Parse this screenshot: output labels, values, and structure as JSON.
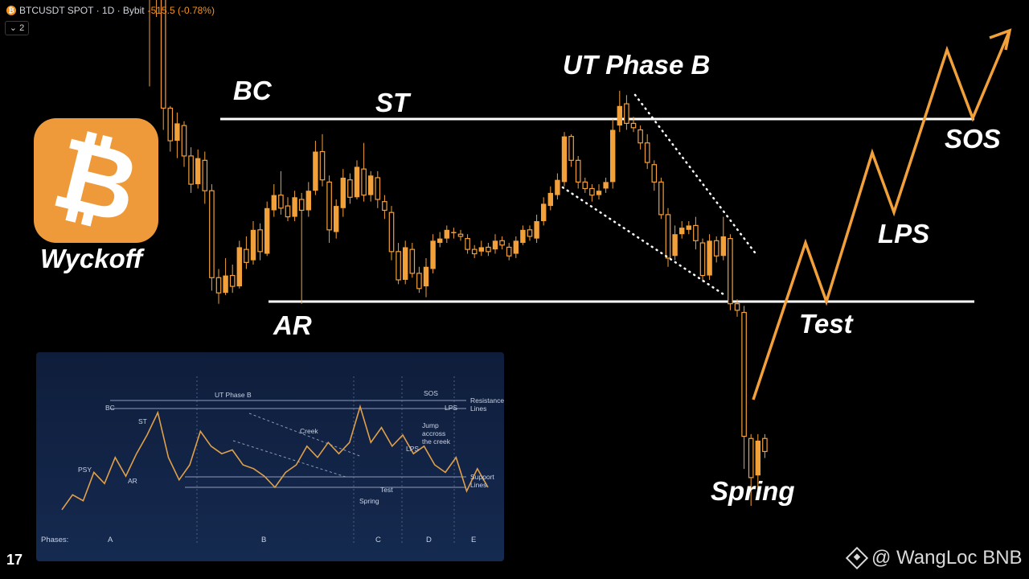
{
  "header": {
    "ticker": "BTCUSDT SPOT · 1D · Bybit",
    "change": "-515.5 (-0.78%)",
    "collapse_label": "⌄ 2"
  },
  "logo": {
    "symbol": "₿",
    "caption": "Wyckoff",
    "color": "#ee9a3a"
  },
  "tradingview_logo": "17",
  "watermark": "@ WangLoc BNB",
  "colors": {
    "candle": "#f2a13a",
    "path": "#f2a13a",
    "level": "#ffffff",
    "background": "#000000"
  },
  "chart_data": [
    {
      "type": "candlestick",
      "title": "",
      "annotations": [
        "BC",
        "ST",
        "UT Phase B",
        "AR",
        "Spring",
        "Test",
        "LPS",
        "SOS"
      ],
      "resistance_level": 11.5,
      "support_level": 3.1,
      "ylim": [
        -6,
        16
      ],
      "candles": [
        [
          21.0,
          19.5,
          21.8,
          13.0
        ],
        [
          19.4,
          17.0,
          21.7,
          16.2
        ],
        [
          17.0,
          12.0,
          17.0,
          11.0
        ],
        [
          12.0,
          10.5,
          12.1,
          10.0
        ],
        [
          10.5,
          11.3,
          11.8,
          9.7
        ],
        [
          11.2,
          9.8,
          11.4,
          9.3
        ],
        [
          9.8,
          8.5,
          10.2,
          8.1
        ],
        [
          8.5,
          9.7,
          10.1,
          8.3
        ],
        [
          9.6,
          8.2,
          10.0,
          7.6
        ],
        [
          8.2,
          4.2,
          8.5,
          3.6
        ],
        [
          4.2,
          3.5,
          4.6,
          3.0
        ],
        [
          3.5,
          4.3,
          5.1,
          3.4
        ],
        [
          4.3,
          3.8,
          4.8,
          3.5
        ],
        [
          3.8,
          5.6,
          5.9,
          3.7
        ],
        [
          5.5,
          4.9,
          6.1,
          4.6
        ],
        [
          5.0,
          6.4,
          6.8,
          4.8
        ],
        [
          6.4,
          5.4,
          6.7,
          5.0
        ],
        [
          5.3,
          7.4,
          7.7,
          5.2
        ],
        [
          7.3,
          8.0,
          8.5,
          7.0
        ],
        [
          8.0,
          7.4,
          9.1,
          7.1
        ],
        [
          7.5,
          7.0,
          7.9,
          6.8
        ],
        [
          7.0,
          7.9,
          8.2,
          6.8
        ],
        [
          7.8,
          7.3,
          8.1,
          3.0
        ],
        [
          7.3,
          8.2,
          8.6,
          7.0
        ],
        [
          8.2,
          10.0,
          10.5,
          8.0
        ],
        [
          10.0,
          8.7,
          10.8,
          8.4
        ],
        [
          8.6,
          6.4,
          8.9,
          5.8
        ],
        [
          6.3,
          7.5,
          7.8,
          6.0
        ],
        [
          7.4,
          8.8,
          9.2,
          7.0
        ],
        [
          8.7,
          7.9,
          9.0,
          7.6
        ],
        [
          7.9,
          9.3,
          9.6,
          7.8
        ],
        [
          9.2,
          8.0,
          10.4,
          7.7
        ],
        [
          8.0,
          8.9,
          9.1,
          7.7
        ],
        [
          8.8,
          7.8,
          9.1,
          7.4
        ],
        [
          7.7,
          7.3,
          8.0,
          6.9
        ],
        [
          7.2,
          5.4,
          7.5,
          5.0
        ],
        [
          5.4,
          4.1,
          5.8,
          3.9
        ],
        [
          4.1,
          5.6,
          5.9,
          3.9
        ],
        [
          5.5,
          4.4,
          5.8,
          4.2
        ],
        [
          4.4,
          3.7,
          4.7,
          3.5
        ],
        [
          3.8,
          4.7,
          5.1,
          3.3
        ],
        [
          4.6,
          5.9,
          6.2,
          4.4
        ],
        [
          5.8,
          6.0,
          6.3,
          5.6
        ],
        [
          6.0,
          6.4,
          6.6,
          5.8
        ],
        [
          6.3,
          6.3,
          6.5,
          6.0
        ],
        [
          6.2,
          6.1,
          6.4,
          5.9
        ],
        [
          6.0,
          5.5,
          6.2,
          5.3
        ],
        [
          5.5,
          5.3,
          5.7,
          5.1
        ],
        [
          5.4,
          5.6,
          5.9,
          5.2
        ],
        [
          5.6,
          5.4,
          5.8,
          5.2
        ],
        [
          5.5,
          5.9,
          6.2,
          5.3
        ],
        [
          5.9,
          5.7,
          6.1,
          5.5
        ],
        [
          5.6,
          5.2,
          5.8,
          5.0
        ],
        [
          5.3,
          5.9,
          6.1,
          5.1
        ],
        [
          5.8,
          6.4,
          6.6,
          5.7
        ],
        [
          6.4,
          6.1,
          6.6,
          5.9
        ],
        [
          6.0,
          6.8,
          7.1,
          5.8
        ],
        [
          6.8,
          7.6,
          7.9,
          6.6
        ],
        [
          7.5,
          8.1,
          8.4,
          7.3
        ],
        [
          8.0,
          8.7,
          9.0,
          7.8
        ],
        [
          8.6,
          10.7,
          10.9,
          8.4
        ],
        [
          10.7,
          9.6,
          10.8,
          9.3
        ],
        [
          9.6,
          8.6,
          9.8,
          8.3
        ],
        [
          8.6,
          8.3,
          8.8,
          8.1
        ],
        [
          8.3,
          8.0,
          8.5,
          7.7
        ],
        [
          8.0,
          8.2,
          8.5,
          7.8
        ],
        [
          8.3,
          8.6,
          8.8,
          8.1
        ],
        [
          8.6,
          11.0,
          11.5,
          8.3
        ],
        [
          11.2,
          12.1,
          12.8,
          10.9
        ],
        [
          12.2,
          11.3,
          12.6,
          11.0
        ],
        [
          11.3,
          11.1,
          11.6,
          10.9
        ],
        [
          11.0,
          10.4,
          11.2,
          10.1
        ],
        [
          10.4,
          9.5,
          10.8,
          9.2
        ],
        [
          9.4,
          8.6,
          9.6,
          8.2
        ],
        [
          8.6,
          7.1,
          8.8,
          6.9
        ],
        [
          7.1,
          5.1,
          7.4,
          4.7
        ],
        [
          5.2,
          6.2,
          6.6,
          5.0
        ],
        [
          6.2,
          6.5,
          6.8,
          6.0
        ],
        [
          6.4,
          6.6,
          6.8,
          6.2
        ],
        [
          6.6,
          5.9,
          7.0,
          5.5
        ],
        [
          5.8,
          4.3,
          6.0,
          4.0
        ],
        [
          4.3,
          5.9,
          6.2,
          4.1
        ],
        [
          5.9,
          5.2,
          6.1,
          4.9
        ],
        [
          5.2,
          6.1,
          7.0,
          5.0
        ],
        [
          6.0,
          3.0,
          6.2,
          2.7
        ],
        [
          3.0,
          2.7,
          3.2,
          2.4
        ],
        [
          2.6,
          -3.1,
          2.9,
          -4.6
        ],
        [
          -3.2,
          -5.0,
          -3.0,
          -6.3
        ],
        [
          -4.9,
          -3.3,
          -3.0,
          -5.7
        ],
        [
          -3.2,
          -3.8,
          -3.0,
          -4.1
        ]
      ]
    },
    {
      "type": "line",
      "title": "",
      "annotations": [
        "BC",
        "ST",
        "UT Phase B",
        "AR",
        "PSY",
        "Creek",
        "Spring",
        "Test",
        "LPS",
        "SOS",
        "Jump accross the creek",
        "Resistance Lines",
        "Support Lines"
      ],
      "x_axis_label": "Phases:",
      "phases": [
        "A",
        "B",
        "C",
        "D",
        "E"
      ],
      "resistance_level": 100,
      "support_level": 0,
      "ylim": [
        -40,
        130
      ],
      "x": [
        0,
        1,
        2,
        3,
        4,
        5,
        6,
        7,
        8,
        9,
        10,
        11,
        12,
        13,
        14,
        15,
        16,
        17,
        18,
        19,
        20,
        21,
        22,
        23,
        24,
        25,
        26,
        27,
        28,
        29,
        30,
        31,
        32,
        33,
        34,
        35,
        36,
        37,
        38,
        39,
        40
      ],
      "y": [
        -30,
        -10,
        -18,
        20,
        5,
        40,
        15,
        45,
        70,
        100,
        40,
        10,
        30,
        75,
        55,
        45,
        50,
        30,
        25,
        15,
        0,
        20,
        30,
        55,
        40,
        60,
        45,
        60,
        108,
        60,
        80,
        55,
        70,
        45,
        55,
        30,
        20,
        40,
        -5,
        25,
        0
      ]
    }
  ]
}
